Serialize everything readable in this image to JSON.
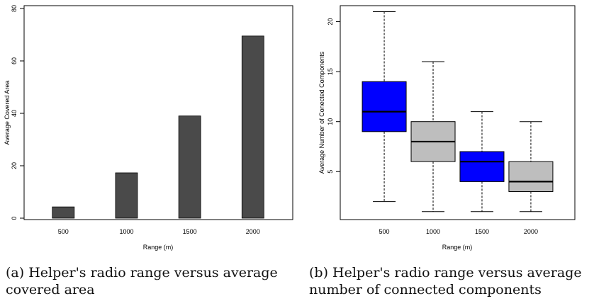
{
  "chart_data": [
    {
      "type": "bar",
      "categories": [
        "500",
        "1000",
        "1500",
        "2000"
      ],
      "values": [
        4.3,
        17.3,
        39.0,
        69.5
      ],
      "xlabel": "Range (m)",
      "ylabel": "Average Covered Area",
      "ylim": [
        0,
        80
      ],
      "yticks": [
        "0",
        "20",
        "40",
        "60",
        "80"
      ],
      "colors": {
        "bar": "#4a4a4a",
        "stroke": "#000000"
      }
    },
    {
      "type": "box",
      "categories": [
        "500",
        "1000",
        "1500",
        "2000"
      ],
      "boxes": [
        {
          "min": 2,
          "q1": 9,
          "median": 11,
          "q3": 14,
          "max": 21,
          "color": "#0000ff"
        },
        {
          "min": 1,
          "q1": 6,
          "median": 8,
          "q3": 10,
          "max": 16,
          "color": "#bebebe"
        },
        {
          "min": 1,
          "q1": 4,
          "median": 6,
          "q3": 7,
          "max": 11,
          "color": "#0000ff"
        },
        {
          "min": 1,
          "q1": 3,
          "median": 4,
          "q3": 6,
          "max": 10,
          "color": "#bebebe"
        }
      ],
      "xlabel": "Range (m)",
      "ylabel": "Average Number of Conected Components",
      "ylim": [
        0.2,
        21.6
      ],
      "yticks": [
        "5",
        "10",
        "15",
        "20"
      ]
    }
  ],
  "captions": {
    "a": "(a) Helper's radio range versus average covered area",
    "b": "(b) Helper's radio range versus average number of connected components"
  }
}
